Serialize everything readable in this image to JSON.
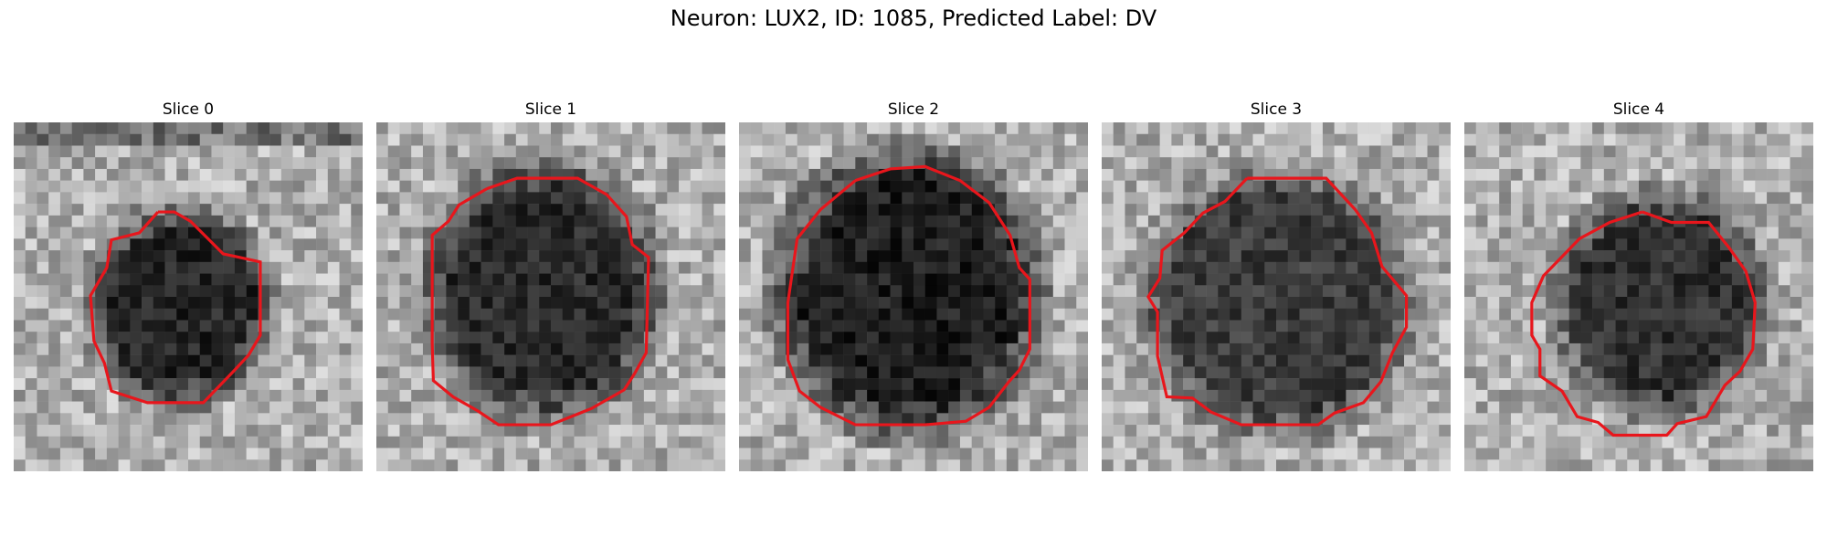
{
  "figure": {
    "title": "Neuron: LUX2, ID: 1085, Predicted Label: DV"
  },
  "colors": {
    "contour": "#e8161c",
    "background": "#ffffff"
  },
  "slices": [
    {
      "title": "Slice 0"
    },
    {
      "title": "Slice 1"
    },
    {
      "title": "Slice 2"
    },
    {
      "title": "Slice 3"
    },
    {
      "title": "Slice 4"
    }
  ]
}
